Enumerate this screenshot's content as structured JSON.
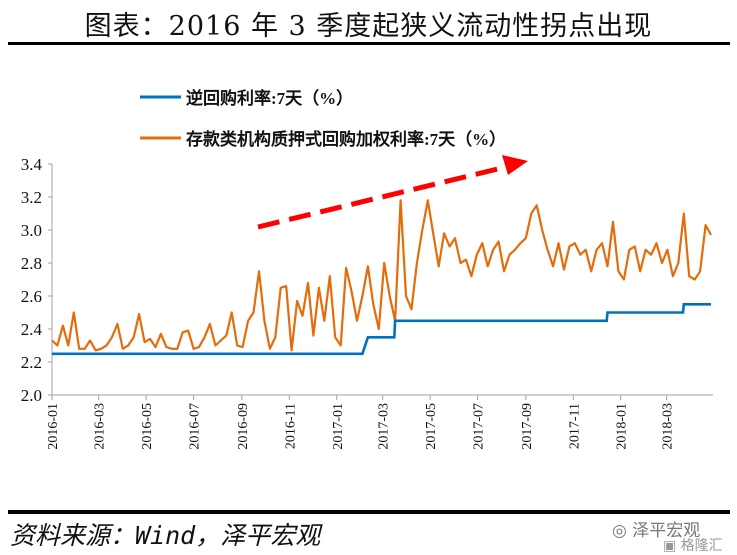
{
  "header": {
    "title": "图表：2016 年 3 季度起狭义流动性拐点出现"
  },
  "footer": {
    "source": "资料来源：Wind，泽平宏观"
  },
  "watermarks": {
    "wechat": "泽平宏观",
    "site": "格隆汇"
  },
  "colors": {
    "reverse_repo": "#0070C0",
    "pledged_repo": "#E46C0A",
    "trend_arrow": "#FF0000",
    "axis": "#A0A0A0"
  },
  "chart_data": {
    "type": "line",
    "title": "图表：2016 年 3 季度起狭义流动性拐点出现",
    "xlabel": "",
    "ylabel": "",
    "ylim": [
      2.0,
      3.4
    ],
    "yticks": [
      "2.0",
      "2.2",
      "2.4",
      "2.6",
      "2.8",
      "3.0",
      "3.2",
      "3.4"
    ],
    "xlim": [
      "2016-01-01",
      "2018-04-27"
    ],
    "xticks": [
      "2016-01",
      "2016-03",
      "2016-05",
      "2016-07",
      "2016-09",
      "2016-11",
      "2017-01",
      "2017-03",
      "2017-05",
      "2017-07",
      "2017-09",
      "2017-11",
      "2018-01",
      "2018-03"
    ],
    "grid": false,
    "legend_position": "top",
    "series": [
      {
        "name": "逆回购利率:7天（%）",
        "step_points": [
          [
            "2016-01-01",
            2.25
          ],
          [
            "2017-02-03",
            2.25
          ],
          [
            "2017-02-10",
            2.35
          ],
          [
            "2017-03-16",
            2.35
          ],
          [
            "2017-03-17",
            2.45
          ],
          [
            "2017-12-14",
            2.45
          ],
          [
            "2017-12-15",
            2.5
          ],
          [
            "2018-03-22",
            2.5
          ],
          [
            "2018-03-23",
            2.55
          ],
          [
            "2018-04-27",
            2.55
          ]
        ]
      },
      {
        "name": "存款类机构质押式回购加权利率:7天（%）",
        "start": "2016-01-01",
        "step_days": 7,
        "values": [
          2.33,
          2.3,
          2.42,
          2.3,
          2.5,
          2.28,
          2.28,
          2.33,
          2.27,
          2.28,
          2.3,
          2.35,
          2.43,
          2.28,
          2.3,
          2.35,
          2.49,
          2.32,
          2.34,
          2.29,
          2.37,
          2.29,
          2.28,
          2.28,
          2.38,
          2.39,
          2.28,
          2.29,
          2.35,
          2.43,
          2.3,
          2.33,
          2.36,
          2.5,
          2.3,
          2.29,
          2.45,
          2.5,
          2.75,
          2.45,
          2.28,
          2.35,
          2.65,
          2.66,
          2.27,
          2.57,
          2.48,
          2.68,
          2.36,
          2.65,
          2.45,
          2.72,
          2.35,
          2.3,
          2.77,
          2.63,
          2.45,
          2.6,
          2.78,
          2.55,
          2.4,
          2.8,
          2.6,
          2.45,
          3.18,
          2.6,
          2.52,
          2.8,
          3.0,
          3.18,
          2.98,
          2.78,
          2.98,
          2.9,
          2.95,
          2.8,
          2.82,
          2.72,
          2.85,
          2.92,
          2.78,
          2.88,
          2.93,
          2.75,
          2.85,
          2.88,
          2.92,
          2.95,
          3.1,
          3.15,
          3.0,
          2.88,
          2.78,
          2.92,
          2.76,
          2.9,
          2.92,
          2.85,
          2.88,
          2.75,
          2.88,
          2.92,
          2.78,
          3.05,
          2.75,
          2.7,
          2.88,
          2.9,
          2.75,
          2.88,
          2.85,
          2.92,
          2.8,
          2.88,
          2.72,
          2.8,
          3.1,
          2.72,
          2.7,
          2.75,
          3.03,
          2.97
        ]
      }
    ],
    "annotations": [
      {
        "type": "arrow",
        "style": "dashed",
        "direction": "up-right",
        "meaning": "rising trend"
      }
    ]
  }
}
